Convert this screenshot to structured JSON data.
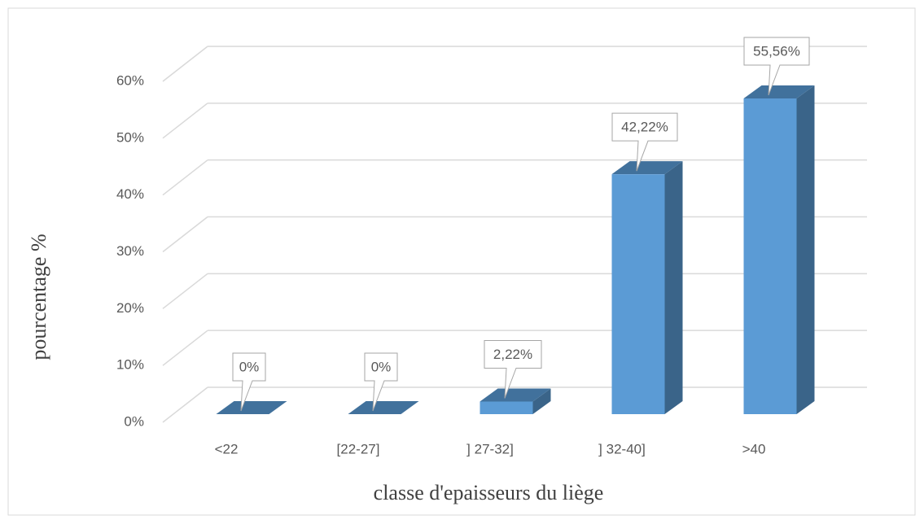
{
  "chart_data": {
    "type": "bar3d",
    "x_label": "classe d'epaisseurs du liège",
    "y_label": "pourcentage %",
    "categories": [
      "<22",
      "[22-27]",
      "] 27-32]",
      "] 32-40]",
      ">40"
    ],
    "values": [
      0,
      0,
      2.22,
      42.22,
      55.56
    ],
    "value_labels": [
      "0%",
      "0%",
      "2,22%",
      "42,22%",
      "55,56%"
    ],
    "color": "#5b9bd5",
    "ylim": [
      0,
      60
    ],
    "yticks": [
      {
        "value": 0,
        "label": "0%"
      },
      {
        "value": 10,
        "label": "10%"
      },
      {
        "value": 20,
        "label": "20%"
      },
      {
        "value": 30,
        "label": "30%"
      },
      {
        "value": 40,
        "label": "40%"
      },
      {
        "value": 50,
        "label": "50%"
      },
      {
        "value": 60,
        "label": "60%"
      }
    ],
    "grid": true
  }
}
